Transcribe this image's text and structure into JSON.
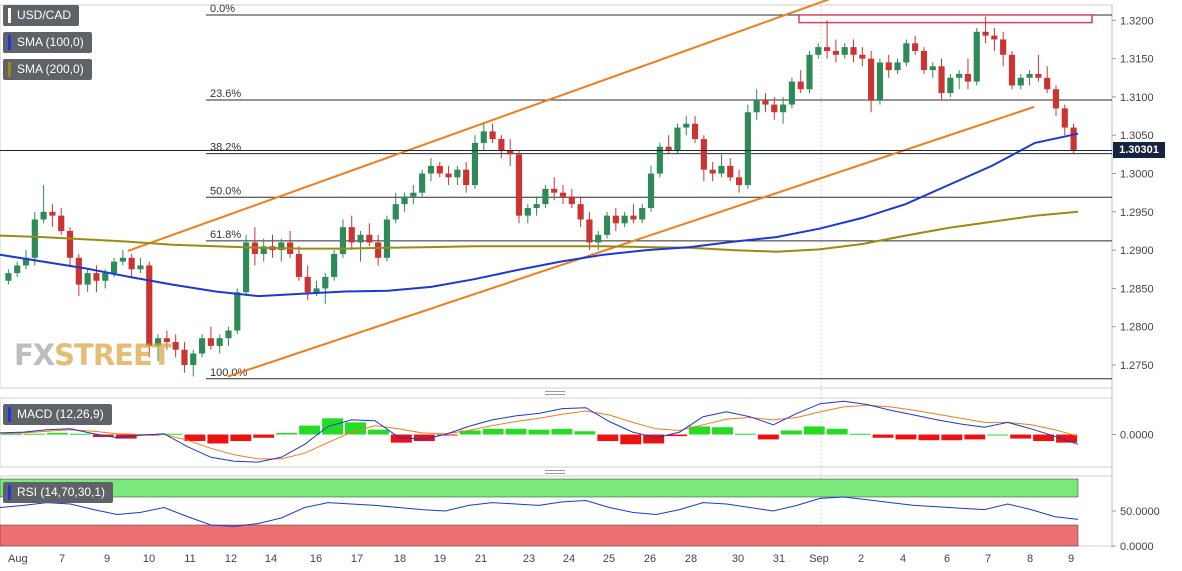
{
  "instrument": "USD/CAD",
  "legend": {
    "price": {
      "label": "USD/CAD",
      "color": "#ffffff"
    },
    "sma100": {
      "label": "SMA (100,0)",
      "color": "#1a39d6"
    },
    "sma200": {
      "label": "SMA (200,0)",
      "color": "#9a8b11"
    },
    "macd": {
      "label": "MACD (12,26,9)",
      "color": "#1a39d6"
    },
    "rsi": {
      "label": "RSI (14,70,30,1)",
      "color": "#1a39d6"
    }
  },
  "watermark": {
    "part1": "FX",
    "part2": "STREET"
  },
  "last_price": "1.30301",
  "colors": {
    "up": "#2e8b57",
    "down": "#cc3333",
    "channel": "#f07e1a",
    "sma100": "#1a39d6",
    "sma200": "#9a8b11",
    "macd_line": "#1a39d6",
    "signal_line": "#f07e1a",
    "hist_up": "#22dd22",
    "hist_down": "#ee1111",
    "rsi_overbought": "#7be87b",
    "rsi_oversold": "#ef7070"
  },
  "chart_data": [
    {
      "type": "candlestick",
      "title": "USD/CAD",
      "x_labels": [
        "Aug",
        "7",
        "9",
        "10",
        "11",
        "12",
        "14",
        "16",
        "17",
        "18",
        "19",
        "21",
        "23",
        "24",
        "25",
        "26",
        "28",
        "30",
        "31",
        "Sep",
        "2",
        "4",
        "6",
        "7",
        "8",
        "9"
      ],
      "ylim": [
        1.272,
        1.322
      ],
      "y_ticks": [
        "1.2750",
        "1.2800",
        "1.2850",
        "1.2900",
        "1.2950",
        "1.3000",
        "1.3050",
        "1.3100",
        "1.3150",
        "1.3200"
      ],
      "fibonacci": [
        {
          "label": "0.0%",
          "value": 1.3207
        },
        {
          "label": "23.6%",
          "value": 1.3096
        },
        {
          "label": "38.2%",
          "value": 1.3026
        },
        {
          "label": "50.0%",
          "value": 1.2969
        },
        {
          "label": "61.8%",
          "value": 1.2912
        },
        {
          "label": "100.0%",
          "value": 1.2732
        }
      ],
      "resistance_zone": [
        1.3197,
        1.3207
      ],
      "channel": {
        "upper": [
          [
            0.115,
            1.2899
          ],
          [
            0.76,
            1.3235
          ]
        ],
        "lower": [
          [
            0.205,
            1.2735
          ],
          [
            0.93,
            1.3087
          ]
        ]
      },
      "sma100": [
        1.2894,
        1.2885,
        1.2876,
        1.2865,
        1.2855,
        1.2846,
        1.284,
        1.2843,
        1.2846,
        1.2847,
        1.2852,
        1.2862,
        1.2874,
        1.2885,
        1.2894,
        1.29,
        1.2904,
        1.2911,
        1.2917,
        1.2928,
        1.2942,
        1.296,
        1.2985,
        1.301,
        1.304,
        1.3052
      ],
      "sma200": [
        1.2919,
        1.2917,
        1.2914,
        1.2911,
        1.2907,
        1.2905,
        1.2903,
        1.2902,
        1.2902,
        1.2903,
        1.2904,
        1.2905,
        1.2905,
        1.2905,
        1.2905,
        1.2904,
        1.2903,
        1.29,
        1.2898,
        1.2901,
        1.2908,
        1.2919,
        1.2929,
        1.2937,
        1.2945,
        1.295
      ],
      "candles": [
        [
          1.286,
          1.2875,
          1.2855,
          1.287
        ],
        [
          1.287,
          1.2885,
          1.2865,
          1.288
        ],
        [
          1.288,
          1.29,
          1.2875,
          1.289
        ],
        [
          1.289,
          1.295,
          1.288,
          1.294
        ],
        [
          1.294,
          1.2985,
          1.2935,
          1.295
        ],
        [
          1.295,
          1.296,
          1.293,
          1.2945
        ],
        [
          1.2945,
          1.2955,
          1.292,
          1.2925
        ],
        [
          1.2925,
          1.293,
          1.288,
          1.289
        ],
        [
          1.289,
          1.2895,
          1.284,
          1.2855
        ],
        [
          1.2855,
          1.2875,
          1.2845,
          1.287
        ],
        [
          1.287,
          1.288,
          1.2845,
          1.286
        ],
        [
          1.286,
          1.2875,
          1.285,
          1.287
        ],
        [
          1.287,
          1.289,
          1.2865,
          1.2885
        ],
        [
          1.2885,
          1.29,
          1.288,
          1.289
        ],
        [
          1.289,
          1.2895,
          1.2865,
          1.2875
        ],
        [
          1.2875,
          1.289,
          1.287,
          1.288
        ],
        [
          1.288,
          1.2885,
          1.276,
          1.2775
        ],
        [
          1.2775,
          1.279,
          1.2755,
          1.2785
        ],
        [
          1.2785,
          1.2795,
          1.277,
          1.278
        ],
        [
          1.278,
          1.279,
          1.276,
          1.277
        ],
        [
          1.277,
          1.278,
          1.274,
          1.275
        ],
        [
          1.275,
          1.277,
          1.2735,
          1.2765
        ],
        [
          1.2765,
          1.279,
          1.276,
          1.2785
        ],
        [
          1.2785,
          1.28,
          1.277,
          1.2775
        ],
        [
          1.2775,
          1.279,
          1.2765,
          1.2785
        ],
        [
          1.2785,
          1.28,
          1.2775,
          1.2795
        ],
        [
          1.2795,
          1.285,
          1.279,
          1.2845
        ],
        [
          1.2845,
          1.292,
          1.284,
          1.291
        ],
        [
          1.291,
          1.293,
          1.288,
          1.2895
        ],
        [
          1.2895,
          1.2915,
          1.2885,
          1.2905
        ],
        [
          1.2905,
          1.292,
          1.289,
          1.29
        ],
        [
          1.29,
          1.2915,
          1.2885,
          1.291
        ],
        [
          1.291,
          1.2925,
          1.289,
          1.2895
        ],
        [
          1.2895,
          1.2905,
          1.286,
          1.2865
        ],
        [
          1.2865,
          1.288,
          1.2835,
          1.2845
        ],
        [
          1.2845,
          1.286,
          1.284,
          1.285
        ],
        [
          1.285,
          1.287,
          1.283,
          1.2865
        ],
        [
          1.2865,
          1.29,
          1.286,
          1.2895
        ],
        [
          1.2895,
          1.294,
          1.289,
          1.293
        ],
        [
          1.293,
          1.2945,
          1.29,
          1.291
        ],
        [
          1.291,
          1.2925,
          1.2885,
          1.292
        ],
        [
          1.292,
          1.2935,
          1.2905,
          1.291
        ],
        [
          1.291,
          1.292,
          1.288,
          1.289
        ],
        [
          1.289,
          1.2945,
          1.2885,
          1.294
        ],
        [
          1.294,
          1.2975,
          1.2935,
          1.296
        ],
        [
          1.296,
          1.2975,
          1.295,
          1.297
        ],
        [
          1.297,
          1.2985,
          1.296,
          1.2975
        ],
        [
          1.2975,
          1.3005,
          1.297,
          1.3
        ],
        [
          1.3,
          1.302,
          1.299,
          1.301
        ],
        [
          1.301,
          1.3015,
          1.2995,
          1.3
        ],
        [
          1.3,
          1.301,
          1.2985,
          1.2995
        ],
        [
          1.2995,
          1.301,
          1.2985,
          1.3005
        ],
        [
          1.3005,
          1.3015,
          1.2975,
          1.2985
        ],
        [
          1.2985,
          1.305,
          1.298,
          1.304
        ],
        [
          1.304,
          1.3065,
          1.303,
          1.3055
        ],
        [
          1.3055,
          1.3065,
          1.304,
          1.3045
        ],
        [
          1.3045,
          1.305,
          1.302,
          1.303
        ],
        [
          1.303,
          1.3045,
          1.301,
          1.3025
        ],
        [
          1.3025,
          1.303,
          1.2935,
          1.2945
        ],
        [
          1.2945,
          1.296,
          1.2935,
          1.2955
        ],
        [
          1.2955,
          1.297,
          1.2945,
          1.296
        ],
        [
          1.296,
          1.2985,
          1.2955,
          1.298
        ],
        [
          1.298,
          1.2995,
          1.2965,
          1.2975
        ],
        [
          1.2975,
          1.2985,
          1.296,
          1.297
        ],
        [
          1.297,
          1.298,
          1.2955,
          1.296
        ],
        [
          1.296,
          1.297,
          1.293,
          1.294
        ],
        [
          1.294,
          1.295,
          1.29,
          1.291
        ],
        [
          1.291,
          1.2925,
          1.29,
          1.292
        ],
        [
          1.292,
          1.295,
          1.2915,
          1.2945
        ],
        [
          1.2945,
          1.2955,
          1.2925,
          1.2935
        ],
        [
          1.2935,
          1.295,
          1.293,
          1.2945
        ],
        [
          1.2945,
          1.296,
          1.2935,
          1.294
        ],
        [
          1.294,
          1.296,
          1.2935,
          1.2955
        ],
        [
          1.2955,
          1.301,
          1.295,
          1.3
        ],
        [
          1.3,
          1.304,
          1.2995,
          1.3035
        ],
        [
          1.3035,
          1.305,
          1.3025,
          1.303
        ],
        [
          1.303,
          1.3065,
          1.3025,
          1.306
        ],
        [
          1.306,
          1.3075,
          1.305,
          1.3065
        ],
        [
          1.3065,
          1.3075,
          1.304,
          1.3045
        ],
        [
          1.3045,
          1.305,
          1.299,
          1.3005
        ],
        [
          1.3005,
          1.3015,
          1.299,
          1.3
        ],
        [
          1.3,
          1.3025,
          1.2995,
          1.301
        ],
        [
          1.301,
          1.302,
          1.299,
          1.2995
        ],
        [
          1.2995,
          1.3005,
          1.2975,
          1.2985
        ],
        [
          1.2985,
          1.309,
          1.298,
          1.308
        ],
        [
          1.308,
          1.311,
          1.307,
          1.3095
        ],
        [
          1.3095,
          1.3105,
          1.308,
          1.309
        ],
        [
          1.309,
          1.31,
          1.307,
          1.308
        ],
        [
          1.308,
          1.31,
          1.3065,
          1.309
        ],
        [
          1.309,
          1.3125,
          1.3085,
          1.312
        ],
        [
          1.312,
          1.3135,
          1.3105,
          1.311
        ],
        [
          1.311,
          1.316,
          1.3105,
          1.3155
        ],
        [
          1.3155,
          1.317,
          1.315,
          1.3165
        ],
        [
          1.3165,
          1.32,
          1.315,
          1.316
        ],
        [
          1.316,
          1.3175,
          1.3145,
          1.3155
        ],
        [
          1.3155,
          1.317,
          1.315,
          1.3165
        ],
        [
          1.3165,
          1.3175,
          1.3145,
          1.3155
        ],
        [
          1.3155,
          1.3165,
          1.314,
          1.315
        ],
        [
          1.315,
          1.316,
          1.308,
          1.3095
        ],
        [
          1.3095,
          1.315,
          1.309,
          1.3145
        ],
        [
          1.3145,
          1.3155,
          1.3125,
          1.3135
        ],
        [
          1.3135,
          1.315,
          1.313,
          1.3145
        ],
        [
          1.3145,
          1.3175,
          1.314,
          1.317
        ],
        [
          1.317,
          1.318,
          1.3155,
          1.316
        ],
        [
          1.316,
          1.3165,
          1.313,
          1.3135
        ],
        [
          1.3135,
          1.3145,
          1.3125,
          1.314
        ],
        [
          1.314,
          1.315,
          1.3095,
          1.3105
        ],
        [
          1.3105,
          1.313,
          1.31,
          1.3125
        ],
        [
          1.3125,
          1.3135,
          1.311,
          1.313
        ],
        [
          1.313,
          1.315,
          1.311,
          1.312
        ],
        [
          1.312,
          1.319,
          1.3115,
          1.3185
        ],
        [
          1.3185,
          1.3205,
          1.317,
          1.318
        ],
        [
          1.318,
          1.319,
          1.316,
          1.3175
        ],
        [
          1.3175,
          1.3185,
          1.314,
          1.3155
        ],
        [
          1.3155,
          1.316,
          1.311,
          1.3115
        ],
        [
          1.3115,
          1.313,
          1.311,
          1.3125
        ],
        [
          1.3125,
          1.3135,
          1.3115,
          1.313
        ],
        [
          1.313,
          1.3155,
          1.312,
          1.3125
        ],
        [
          1.3125,
          1.314,
          1.3105,
          1.311
        ],
        [
          1.311,
          1.3115,
          1.3075,
          1.3085
        ],
        [
          1.3085,
          1.309,
          1.305,
          1.306
        ],
        [
          1.306,
          1.3065,
          1.3025,
          1.303
        ]
      ]
    },
    {
      "type": "line",
      "title": "MACD (12,26,9)",
      "y_ticks": [
        "0.0000"
      ],
      "ylim": [
        -0.004,
        0.0045
      ],
      "macd": [
        0.0002,
        0.0003,
        0.0006,
        0.0007,
        0.0001,
        -0.0004,
        -0.0001,
        0.0001,
        -0.0015,
        -0.0028,
        -0.0033,
        -0.0034,
        -0.0028,
        -0.0012,
        0.001,
        0.0018,
        0.0017,
        -0.0003,
        -0.0006,
        0.0,
        0.001,
        0.0018,
        0.0023,
        0.0026,
        0.0032,
        0.0033,
        0.0016,
        0.0003,
        -0.0004,
        0.0003,
        0.0022,
        0.0028,
        0.0022,
        0.0012,
        0.0026,
        0.0038,
        0.0041,
        0.0037,
        0.003,
        0.0024,
        0.0018,
        0.0013,
        0.0009,
        0.0015,
        0.0007,
        -0.0002,
        -0.0012
      ],
      "signal": [
        0.0001,
        0.0002,
        0.0004,
        0.0006,
        0.0004,
        0.0001,
        0.0,
        0.0,
        -0.0007,
        -0.0017,
        -0.0025,
        -0.003,
        -0.003,
        -0.0023,
        -0.001,
        0.0003,
        0.0011,
        0.0007,
        0.0002,
        0.0001,
        0.0005,
        0.0011,
        0.0016,
        0.002,
        0.0025,
        0.0029,
        0.0024,
        0.0015,
        0.0007,
        0.0005,
        0.0012,
        0.0019,
        0.0021,
        0.0018,
        0.0021,
        0.0028,
        0.0034,
        0.0036,
        0.0034,
        0.003,
        0.0025,
        0.002,
        0.0015,
        0.0015,
        0.0012,
        0.0006,
        -0.0002
      ],
      "histogram": [
        0.0001,
        0.0001,
        0.0002,
        0.0001,
        -0.0003,
        -0.0005,
        -0.0001,
        0.0001,
        -0.0008,
        -0.0011,
        -0.0008,
        -0.0004,
        0.0002,
        0.0011,
        0.002,
        0.0015,
        0.0006,
        -0.001,
        -0.0008,
        -0.0001,
        0.0005,
        0.0007,
        0.0007,
        0.0006,
        0.0007,
        0.0004,
        -0.0008,
        -0.0012,
        -0.0011,
        -0.0002,
        0.001,
        0.0009,
        0.0001,
        -0.0006,
        0.0005,
        0.001,
        0.0007,
        0.0001,
        -0.0004,
        -0.0006,
        -0.0007,
        -0.0007,
        -0.0006,
        0.0,
        -0.0005,
        -0.0008,
        -0.001
      ]
    },
    {
      "type": "line",
      "title": "RSI (14,70,30,1)",
      "y_ticks": [
        "50.0000",
        "0.0000"
      ],
      "ylim": [
        0,
        100
      ],
      "overbought": 70,
      "oversold": 30,
      "rsi": [
        55,
        58,
        62,
        60,
        52,
        45,
        48,
        55,
        42,
        30,
        28,
        32,
        40,
        55,
        62,
        60,
        58,
        55,
        52,
        50,
        58,
        62,
        60,
        58,
        63,
        65,
        55,
        48,
        45,
        52,
        62,
        60,
        55,
        50,
        58,
        68,
        70,
        66,
        62,
        58,
        56,
        54,
        52,
        60,
        52,
        42,
        38
      ]
    }
  ]
}
